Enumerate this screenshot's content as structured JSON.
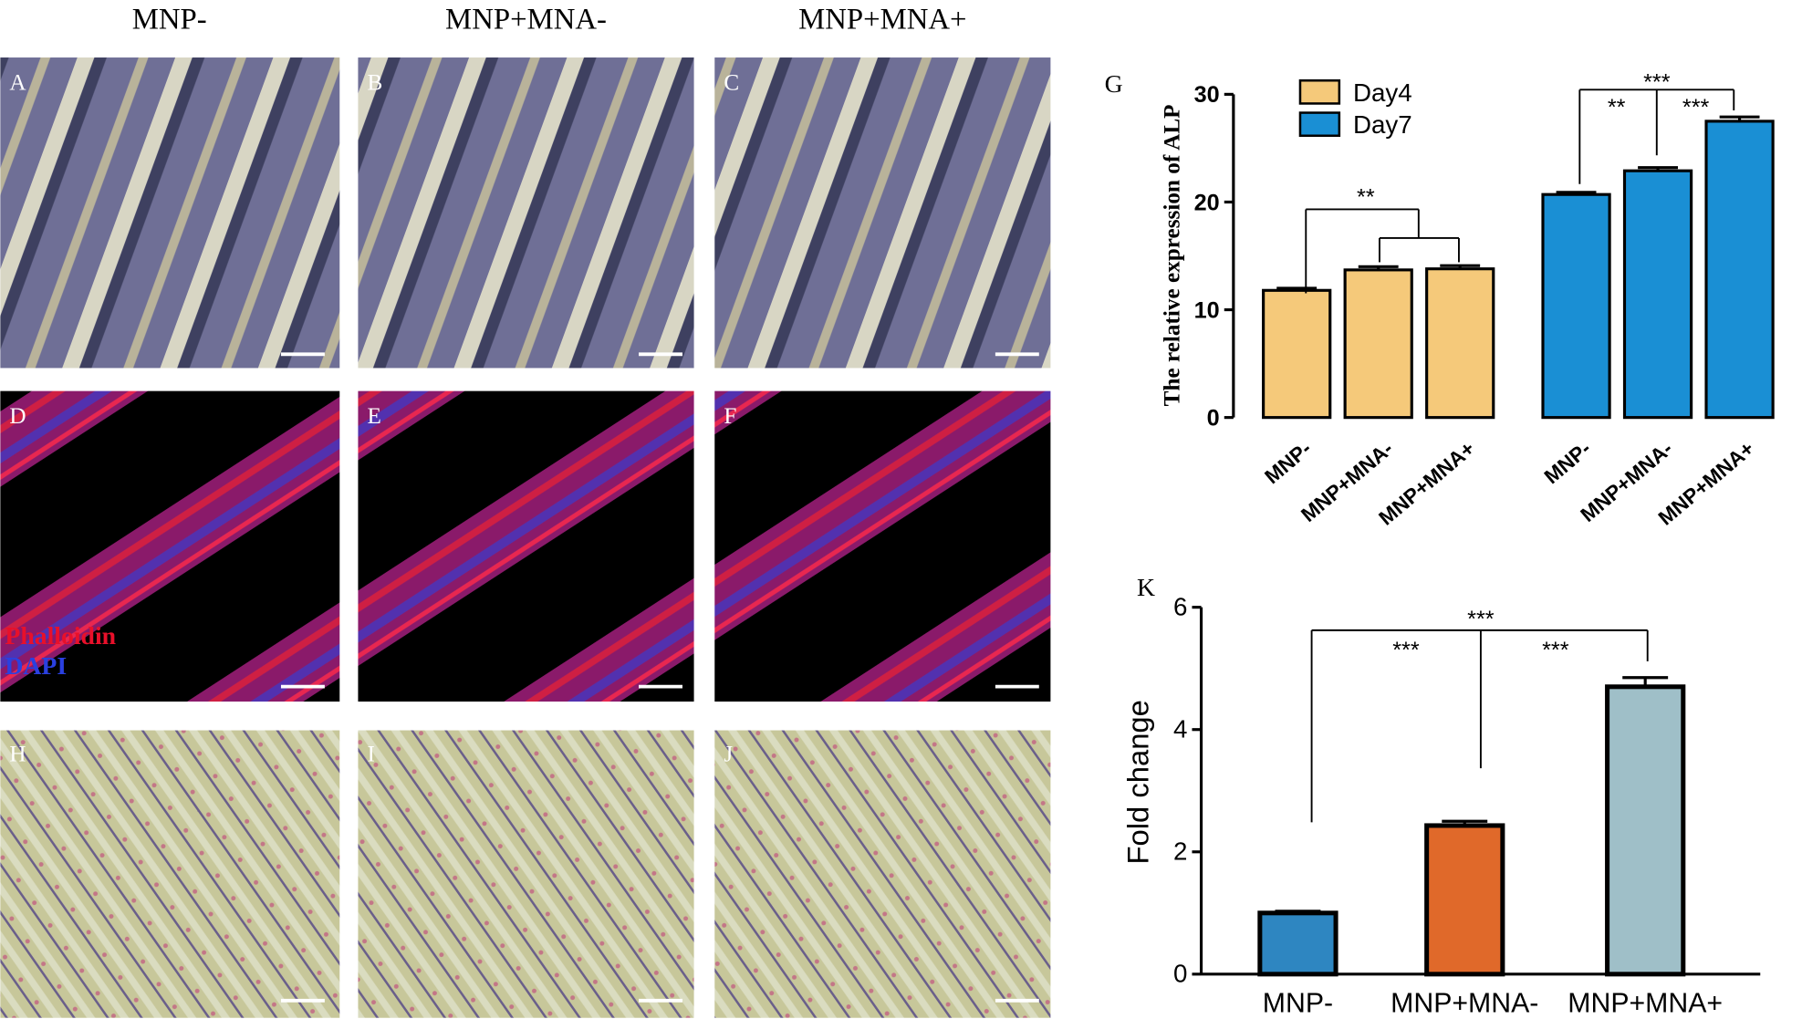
{
  "columns": [
    "MNP-",
    "MNP+MNA-",
    "MNP+MNA+"
  ],
  "panel_labels": [
    "A",
    "B",
    "C",
    "D",
    "E",
    "F",
    "H",
    "I",
    "J"
  ],
  "stain_legend": [
    "Phalloidin",
    "DAPI"
  ],
  "chart_data": [
    {
      "type": "bar",
      "panel_label": "G",
      "ylabel": "The relative expression of ALP",
      "categories": [
        "MNP-",
        "MNP+MNA-",
        "MNP+MNA+"
      ],
      "series": [
        {
          "name": "Day4",
          "color": "#f5c97a",
          "values": [
            11.8,
            13.7,
            13.8
          ],
          "errors": [
            0.2,
            0.3,
            0.3
          ]
        },
        {
          "name": "Day7",
          "color": "#1a8fd4",
          "values": [
            20.7,
            22.9,
            27.5
          ],
          "errors": [
            0.2,
            0.3,
            0.4
          ]
        }
      ],
      "ylim": [
        0,
        30
      ],
      "yticks": [
        0,
        10,
        20,
        30
      ],
      "annotations": [
        "**",
        "***",
        "**",
        "***"
      ]
    },
    {
      "type": "bar",
      "panel_label": "K",
      "ylabel": "Fold change",
      "categories": [
        "MNP-",
        "MNP+MNA-",
        "MNP+MNA+"
      ],
      "values": [
        1.0,
        2.43,
        4.7
      ],
      "errors": [
        0.03,
        0.07,
        0.15
      ],
      "colors": [
        "#2e86c1",
        "#e0692a",
        "#9fbfc8"
      ],
      "ylim": [
        0,
        6
      ],
      "yticks": [
        0,
        2,
        4,
        6
      ],
      "annotations": [
        "***",
        "***",
        "***"
      ]
    }
  ]
}
